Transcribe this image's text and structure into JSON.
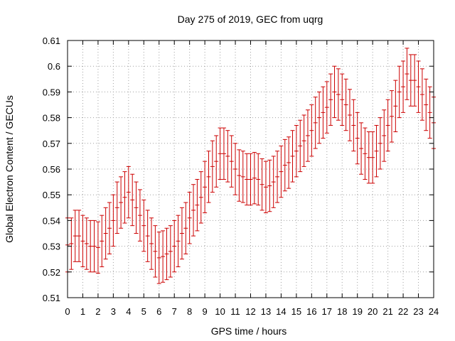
{
  "chart_data": {
    "type": "scatter",
    "title": "Day 275 of 2019, GEC from uqrg",
    "xlabel": "GPS time / hours",
    "ylabel": "Global Electron Content / GECUs",
    "xlim": [
      0,
      24
    ],
    "ylim": [
      0.51,
      0.61
    ],
    "grid": true,
    "legend": "none",
    "error_bars": true,
    "x_ticks": [
      0,
      1,
      2,
      3,
      4,
      5,
      6,
      7,
      8,
      9,
      10,
      11,
      12,
      13,
      14,
      15,
      16,
      17,
      18,
      19,
      20,
      21,
      22,
      23,
      24
    ],
    "y_ticks": [
      "0.51",
      "0.52",
      "0.53",
      "0.54",
      "0.55",
      "0.56",
      "0.57",
      "0.58",
      "0.59",
      "0.6",
      "0.61"
    ],
    "series": [
      {
        "color": "#cc0000",
        "x": [
          0,
          0.25,
          0.5,
          0.75,
          1,
          1.25,
          1.5,
          1.75,
          2,
          2.25,
          2.5,
          2.75,
          3,
          3.25,
          3.5,
          3.75,
          4,
          4.25,
          4.5,
          4.75,
          5,
          5.25,
          5.5,
          5.75,
          6,
          6.25,
          6.5,
          6.75,
          7,
          7.25,
          7.5,
          7.75,
          8,
          8.25,
          8.5,
          8.75,
          9,
          9.25,
          9.5,
          9.75,
          10,
          10.25,
          10.5,
          10.75,
          11,
          11.25,
          11.5,
          11.75,
          12,
          12.25,
          12.5,
          12.75,
          13,
          13.25,
          13.5,
          13.75,
          14,
          14.25,
          14.5,
          14.75,
          15,
          15.25,
          15.5,
          15.75,
          16,
          16.25,
          16.5,
          16.75,
          17,
          17.25,
          17.5,
          17.75,
          18,
          18.25,
          18.5,
          18.75,
          19,
          19.25,
          19.5,
          19.75,
          20,
          20.25,
          20.5,
          20.75,
          21,
          21.25,
          21.5,
          21.75,
          22,
          22.25,
          22.5,
          22.75,
          23,
          23.25,
          23.5,
          23.75,
          24
        ],
        "y": [
          0.5305,
          0.531,
          0.534,
          0.534,
          0.532,
          0.531,
          0.53,
          0.53,
          0.5295,
          0.532,
          0.535,
          0.537,
          0.54,
          0.545,
          0.547,
          0.549,
          0.551,
          0.548,
          0.545,
          0.542,
          0.538,
          0.534,
          0.531,
          0.528,
          0.5255,
          0.526,
          0.527,
          0.528,
          0.53,
          0.532,
          0.535,
          0.537,
          0.541,
          0.544,
          0.546,
          0.549,
          0.553,
          0.557,
          0.561,
          0.563,
          0.566,
          0.566,
          0.565,
          0.563,
          0.56,
          0.5575,
          0.557,
          0.556,
          0.556,
          0.5565,
          0.556,
          0.554,
          0.553,
          0.5535,
          0.555,
          0.557,
          0.559,
          0.5615,
          0.5625,
          0.565,
          0.567,
          0.569,
          0.571,
          0.573,
          0.575,
          0.578,
          0.58,
          0.582,
          0.584,
          0.587,
          0.59,
          0.589,
          0.587,
          0.585,
          0.581,
          0.577,
          0.572,
          0.568,
          0.566,
          0.5645,
          0.5645,
          0.567,
          0.57,
          0.573,
          0.577,
          0.5805,
          0.5845,
          0.59,
          0.592,
          0.597,
          0.5945,
          0.5945,
          0.592,
          0.589,
          0.585,
          0.582,
          0.578
        ],
        "err": [
          0.0105,
          0.01,
          0.01,
          0.01,
          0.01,
          0.01,
          0.01,
          0.01,
          0.01,
          0.01,
          0.01,
          0.01,
          0.01,
          0.01,
          0.01,
          0.01,
          0.01,
          0.01,
          0.01,
          0.01,
          0.01,
          0.01,
          0.01,
          0.01,
          0.01,
          0.01,
          0.01,
          0.01,
          0.01,
          0.01,
          0.01,
          0.01,
          0.01,
          0.01,
          0.01,
          0.01,
          0.01,
          0.01,
          0.01,
          0.01,
          0.01,
          0.01,
          0.01,
          0.01,
          0.01,
          0.01,
          0.01,
          0.01,
          0.01,
          0.01,
          0.01,
          0.01,
          0.01,
          0.01,
          0.01,
          0.01,
          0.01,
          0.01,
          0.01,
          0.01,
          0.01,
          0.01,
          0.01,
          0.01,
          0.01,
          0.01,
          0.01,
          0.01,
          0.01,
          0.01,
          0.01,
          0.01,
          0.01,
          0.01,
          0.01,
          0.01,
          0.01,
          0.01,
          0.01,
          0.01,
          0.01,
          0.01,
          0.01,
          0.01,
          0.01,
          0.01,
          0.01,
          0.01,
          0.01,
          0.01,
          0.01,
          0.01,
          0.01,
          0.01,
          0.01,
          0.01,
          0.01
        ]
      }
    ]
  }
}
